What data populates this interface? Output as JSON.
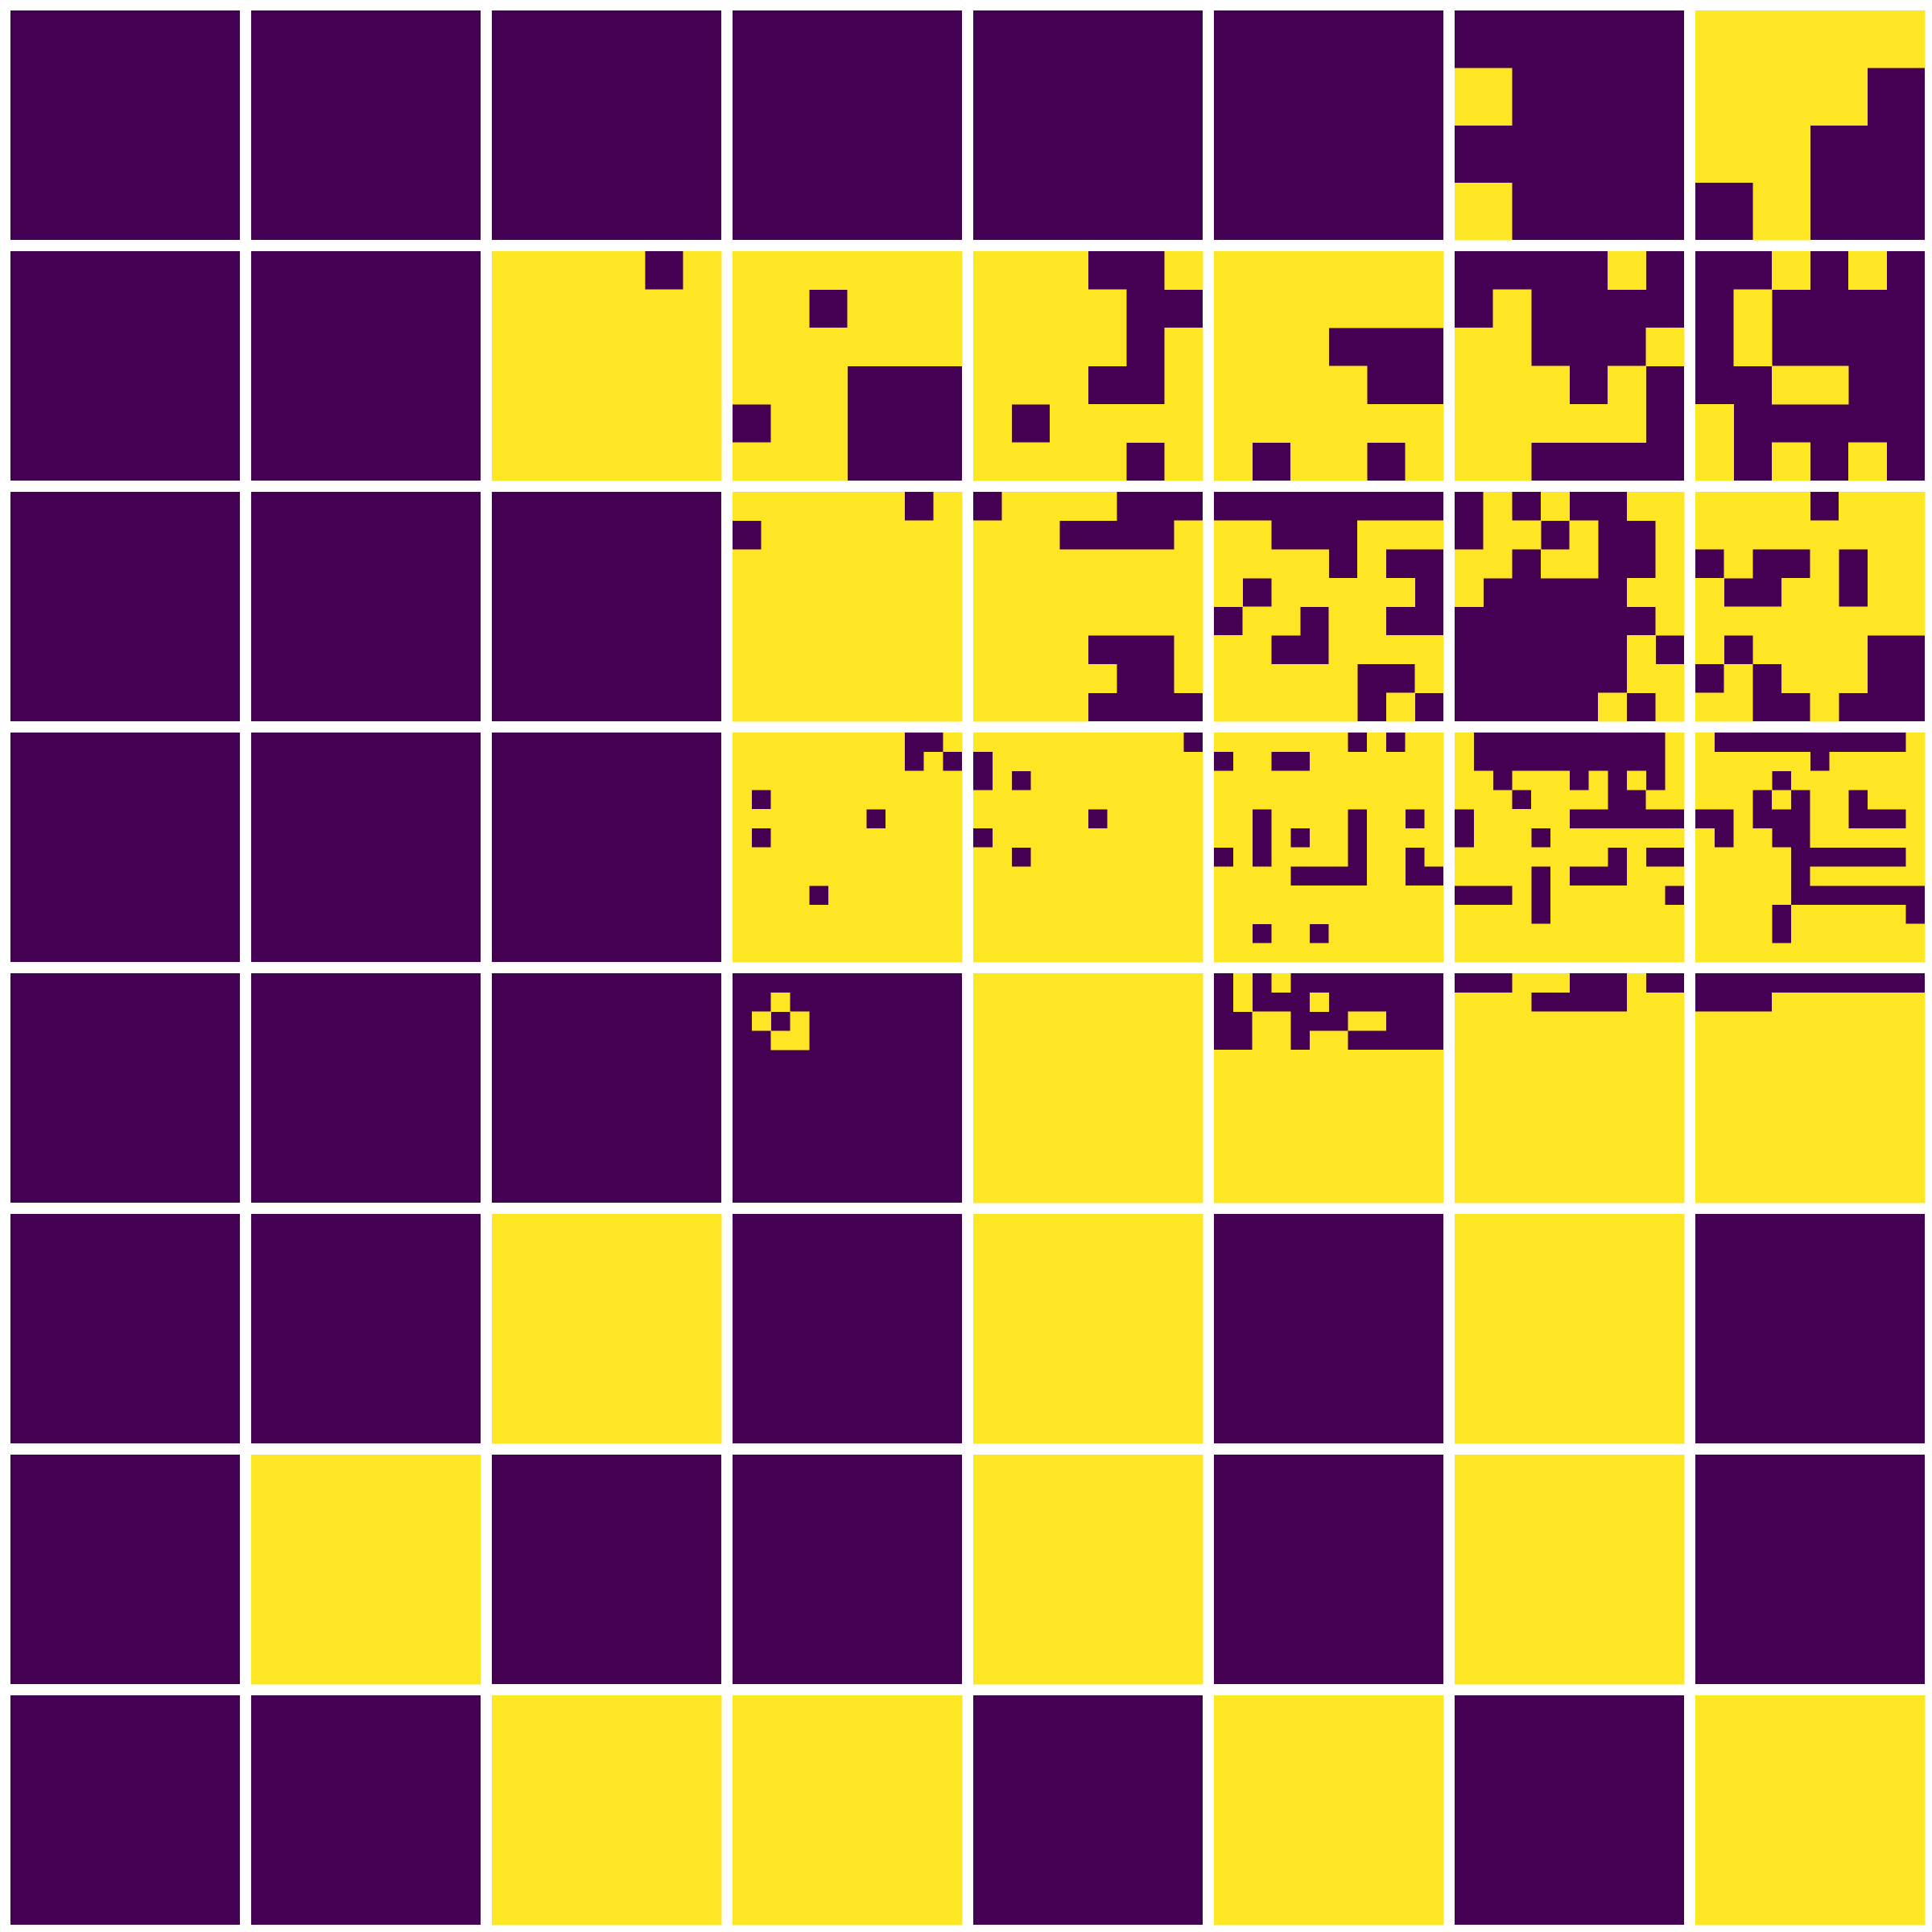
{
  "figure": {
    "rows": 8,
    "columns": 8,
    "colors": {
      "background": "#ffffff",
      "off": "#440154",
      "on": "#fde725"
    },
    "panels": [
      [
        {
          "res": 1,
          "bits": "0"
        },
        {
          "res": 1,
          "bits": "0"
        },
        {
          "res": 1,
          "bits": "0"
        },
        {
          "res": 1,
          "bits": "0"
        },
        {
          "res": 1,
          "bits": "0"
        },
        {
          "res": 1,
          "bits": "0"
        },
        {
          "res": 4,
          "bits": "0000100000001000"
        },
        {
          "res": 4,
          "bits": "1111111011000100"
        }
      ],
      [
        {
          "res": 1,
          "bits": "0"
        },
        {
          "res": 1,
          "bits": "0"
        },
        {
          "res": 6,
          "bits": "111101111111111111111111111111111111"
        },
        {
          "res": 6,
          "bits": "111111110111111111111000011000111000"
        },
        {
          "res": 6,
          "bits": "111001111100111101111001101111111101"
        },
        {
          "res": 6,
          "bits": "111111111111111000111100111111101101"
        },
        {
          "res": 6,
          "bits": "000010010000110001111010111110110000"
        },
        {
          "res": 6,
          "bits": "001010010000010000001100100000101010"
        }
      ],
      [
        {
          "res": 1,
          "bits": "0"
        },
        {
          "res": 1,
          "bits": "0"
        },
        {
          "res": 1,
          "bits": "0"
        },
        {
          "res": 8,
          "bits": "1111110101111111111111111111111111111111111111111111111111111111"
        },
        {
          "res": 8,
          "bits": "0111100011100001111111111111111111111111111100011111100111110000"
        },
        {
          "res": 8,
          "bits": "0000000011000111111101001011111001101100110011111111100111111010"
        },
        {
          "res": 8,
          "bits": "0101001101101001110110011000001100000001000000100000001100000101"
        },
        {
          "res": 8,
          "bits": "1111011111111111010010111001101111111111101111000101110011001000"
        }
      ],
      [
        {
          "res": 1,
          "bits": "0"
        },
        {
          "res": 1,
          "bits": "0"
        },
        {
          "res": 12,
          "bits": "000000000000000000000000000000000000000000000000000000000000000000000000000000000000000000000000000000000000000000000000000000000000000000000000"
        },
        {
          "res": 12,
          "bits": "111111111001111111111010111111111111101111111111111111101111101111111111111111111111111111111111111101111111111111111111111111111111111111111111"
        },
        {
          "res": 12,
          "bits": "111111111110011111111111010111111111111111111111111111011111011111111111110111111111111111111111111111111111111111111111111111111111111111111111"
        },
        {
          "res": 12,
          "bits": "111111101011011001111111111111111111111111111111110111101101110101101111010111101101111100001100111111111111111111111111110110111111111111111111"
        },
        {
          "res": 12,
          "bits": "100000000001100000000001110111010101111011110011011111000000011101111111111111110100111101000111000101111110111101111111111111111111111111111111"
        },
        {
          "res": 12,
          "bits": "100000000001111111011111111101111111111010110111001000110001101100111111111110000001111110111111111110000000111101111110111101111111111111111111"
        }
      ],
      [
        {
          "res": 1,
          "bits": "0"
        },
        {
          "res": 1,
          "bits": "0"
        },
        {
          "res": 12,
          "bits": "000000000000000000000000000000000000000000000000000000000000000000000000000000000000000000000000000000000000000000000000000000000000000000000000"
        },
        {
          "res": 12,
          "bits": "000000000000001000000000010100000000001100000000000000000000000000000000000000000000000000000000000000000000000000000000000000000000000000000000"
        },
        {
          "res": 12,
          "bits": "111111111111111111111111111111111111111111111111111111111111111111111111111111111111111111111111111111111111111111111111111111111111111111111111"
        },
        {
          "res": 12,
          "bits": "010100000000010001000000001100011000001101100000111111111111111111111111111111111111111111111111111111111111111111111111111111111111111111111111"
        },
        {
          "res": 12,
          "bits": "000111000100111100000111111111111111111111111111111111111111111111111111111111111111111111111111111111111111111111111111111111111111111111111111"
        },
        {
          "res": 12,
          "bits": "000000000000000011111111111111111111111111111111111111111111111111111111111111111111111111111111111111111111111111111111111111111111111111111111"
        }
      ],
      [
        {
          "res": 12,
          "bits": "000000000000000000000000000000000000000000000000000000000000000000000000000000000000000000000000000000000000000000000000000000000000000000000000"
        },
        {
          "res": 12,
          "bits": "000000000000000000000000000000000000000000000000000000000000000000000000000000000000000000000000000000000000000000000000000000000000000000000000"
        },
        {
          "res": 12,
          "bits": "111111111111111111111111111111111111111111111111111111111111111111111111111111111111111111111111111111111111111111111111111111111111111111111111"
        },
        {
          "res": 12,
          "bits": "000000000000000000000000000000000000000000000000000000000000000000000000000000000000000000000000000000000000000000000000000000000000000000000000"
        },
        {
          "res": 12,
          "bits": "111111111111111111111111111111111111111111111111111111111111111111111111111111111111111111111111111111111111111111111111111111111111111111111111"
        },
        {
          "res": 12,
          "bits": "000000000000000000000000000000000000000000000000000000000000000000000000000000000000000000000000000000000000000000000000000000000000000000000000"
        },
        {
          "res": 12,
          "bits": "111111111111111111111111111111111111111111111111111111111111111111111111111111111111111111111111111111111111111111111111111111111111111111111111"
        },
        {
          "res": 12,
          "bits": "000000000000000000000000000000000000000000000000000000000000000000000000000000000000000000000000000000000000000000000000000000000000000000000000"
        }
      ],
      [
        {
          "res": 12,
          "bits": "000000000000000000000000000000000000000000000000000000000000000000000000000000000000000000000000000000000000000000000000000000000000000000000000"
        },
        {
          "res": 12,
          "bits": "111111111111111111111111111111111111111111111111111111111111111111111111111111111111111111111111111111111111111111111111111111111111111111111111"
        },
        {
          "res": 12,
          "bits": "000000000000000000000000000000000000000000000000000000000000000000000000000000000000000000000000000000000000000000000000000000000000000000000000"
        },
        {
          "res": 12,
          "bits": "000000000000000000000000000000000000000000000000000000000000000000000000000000000000000000000000000000000000000000000000000000000000000000000000"
        },
        {
          "res": 12,
          "bits": "111111111111111111111111111111111111111111111111111111111111111111111111111111111111111111111111111111111111111111111111111111111111111111111111"
        },
        {
          "res": 12,
          "bits": "000000000000000000000000000000000000000000000000000000000000000000000000000000000000000000000000000000000000000000000000000000000000000000000000"
        },
        {
          "res": 12,
          "bits": "111111111111111111111111111111111111111111111111111111111111111111111111111111111111111111111111111111111111111111111111111111111111111111111111"
        },
        {
          "res": 12,
          "bits": "000000000000000000000000000000000000000000000000000000000000000000000000000000000000000000000000000000000000000000000000000000000000000000000000"
        }
      ],
      [
        {
          "res": 12,
          "bits": "000000000000000000000000000000000000000000000000000000000000000000000000000000000000000000000000000000000000000000000000000000000000000000000000"
        },
        {
          "res": 12,
          "bits": "000000000000000000000000000000000000000000000000000000000000000000000000000000000000000000000000000000000000000000000000000000000000000000000000"
        },
        {
          "res": 12,
          "bits": "111111111111111111111111111111111111111111111111111111111111111111111111111111111111111111111111111111111111111111111111111111111111111111111111"
        },
        {
          "res": 12,
          "bits": "111111111111111111111111111111111111111111111111111111111111111111111111111111111111111111111111111111111111111111111111111111111111111111111111"
        },
        {
          "res": 12,
          "bits": "000000000000000000000000000000000000000000000000000000000000000000000000000000000000000000000000000000000000000000000000000000000000000000000000"
        },
        {
          "res": 12,
          "bits": "111111111111111111111111111111111111111111111111111111111111111111111111111111111111111111111111111111111111111111111111111111111111111111111111"
        },
        {
          "res": 12,
          "bits": "000000000000000000000000000000000000000000000000000000000000000000000000000000000000000000000000000000000000000000000000000000000000000000000000"
        },
        {
          "res": 12,
          "bits": "111111111111111111111111111111111111111111111111111111111111111111111111111111111111111111111111111111111111111111111111111111111111111111111111"
        }
      ]
    ]
  }
}
